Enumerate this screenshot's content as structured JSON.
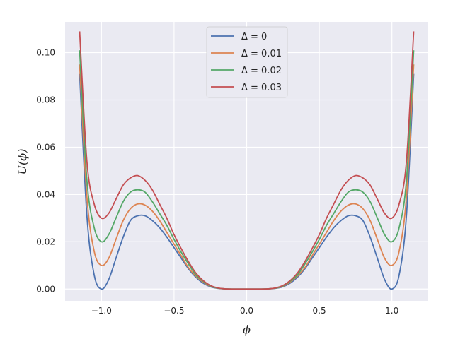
{
  "chart_data": {
    "type": "line",
    "title": "",
    "xlabel": "ϕ",
    "ylabel": "U(ϕ)",
    "xlim": [
      -1.25,
      1.25
    ],
    "ylim": [
      -0.005,
      0.113
    ],
    "x_ticks": [
      -1.0,
      -0.5,
      0.0,
      0.5,
      1.0
    ],
    "x_tick_labels": [
      "−1.0",
      "−0.5",
      "0.0",
      "0.5",
      "1.0"
    ],
    "y_ticks": [
      0.0,
      0.02,
      0.04,
      0.06,
      0.08,
      0.1
    ],
    "y_tick_labels": [
      "0.00",
      "0.02",
      "0.04",
      "0.06",
      "0.08",
      "0.10"
    ],
    "x_range": [
      -1.15,
      1.15
    ],
    "grid": true,
    "legend_position": "top-center",
    "x": [
      -1.15,
      -1.1,
      -1.05,
      -1.0,
      -0.95,
      -0.9,
      -0.85,
      -0.8,
      -0.75,
      -0.7,
      -0.65,
      -0.6,
      -0.55,
      -0.5,
      -0.45,
      -0.4,
      -0.35,
      -0.3,
      -0.25,
      -0.2,
      -0.15,
      -0.1,
      -0.05,
      0.0,
      0.05,
      0.1,
      0.15,
      0.2,
      0.25,
      0.3,
      0.35,
      0.4,
      0.45,
      0.5,
      0.55,
      0.6,
      0.65,
      0.7,
      0.75,
      0.8,
      0.85,
      0.9,
      0.95,
      1.0,
      1.05,
      1.1,
      1.15
    ],
    "series": [
      {
        "name": "Δ = 0",
        "color": "#4c72b0",
        "values": [
          0.091,
          0.031,
          0.006,
          0.0,
          0.004,
          0.013,
          0.022,
          0.029,
          0.031,
          0.031,
          0.029,
          0.026,
          0.022,
          0.0175,
          0.013,
          0.0085,
          0.005,
          0.0025,
          0.001,
          0.0003,
          0.0001,
          0.0,
          0.0,
          0.0,
          0.0,
          0.0,
          0.0001,
          0.0003,
          0.001,
          0.0025,
          0.005,
          0.0085,
          0.013,
          0.0175,
          0.022,
          0.026,
          0.029,
          0.031,
          0.031,
          0.029,
          0.022,
          0.013,
          0.004,
          0.0,
          0.006,
          0.031,
          0.091
        ]
      },
      {
        "name": "Δ = 0.01",
        "color": "#dd8452",
        "values": [
          0.095,
          0.039,
          0.016,
          0.01,
          0.013,
          0.021,
          0.029,
          0.034,
          0.036,
          0.0355,
          0.033,
          0.029,
          0.024,
          0.019,
          0.014,
          0.009,
          0.0055,
          0.003,
          0.0012,
          0.0004,
          0.0001,
          0.0,
          0.0,
          0.0,
          0.0,
          0.0,
          0.0001,
          0.0004,
          0.0012,
          0.003,
          0.0055,
          0.009,
          0.014,
          0.019,
          0.024,
          0.029,
          0.033,
          0.0355,
          0.036,
          0.034,
          0.029,
          0.021,
          0.013,
          0.01,
          0.016,
          0.039,
          0.095
        ]
      },
      {
        "name": "Δ = 0.02",
        "color": "#55a868",
        "values": [
          0.101,
          0.046,
          0.026,
          0.02,
          0.023,
          0.03,
          0.037,
          0.041,
          0.042,
          0.041,
          0.037,
          0.032,
          0.027,
          0.021,
          0.0155,
          0.0105,
          0.006,
          0.0033,
          0.0013,
          0.0004,
          0.0001,
          0.0,
          0.0,
          0.0,
          0.0,
          0.0,
          0.0001,
          0.0004,
          0.0013,
          0.0033,
          0.006,
          0.0105,
          0.0155,
          0.021,
          0.027,
          0.032,
          0.037,
          0.041,
          0.042,
          0.041,
          0.037,
          0.03,
          0.023,
          0.02,
          0.026,
          0.046,
          0.101
        ]
      },
      {
        "name": "Δ = 0.03",
        "color": "#c44e52",
        "values": [
          0.109,
          0.054,
          0.036,
          0.03,
          0.032,
          0.038,
          0.044,
          0.047,
          0.048,
          0.046,
          0.042,
          0.036,
          0.03,
          0.023,
          0.017,
          0.0115,
          0.0068,
          0.0036,
          0.0015,
          0.0005,
          0.0001,
          0.0,
          0.0,
          0.0,
          0.0,
          0.0,
          0.0001,
          0.0005,
          0.0015,
          0.0036,
          0.0068,
          0.0115,
          0.017,
          0.023,
          0.03,
          0.036,
          0.042,
          0.046,
          0.048,
          0.047,
          0.044,
          0.038,
          0.032,
          0.03,
          0.036,
          0.054,
          0.109
        ]
      }
    ]
  }
}
